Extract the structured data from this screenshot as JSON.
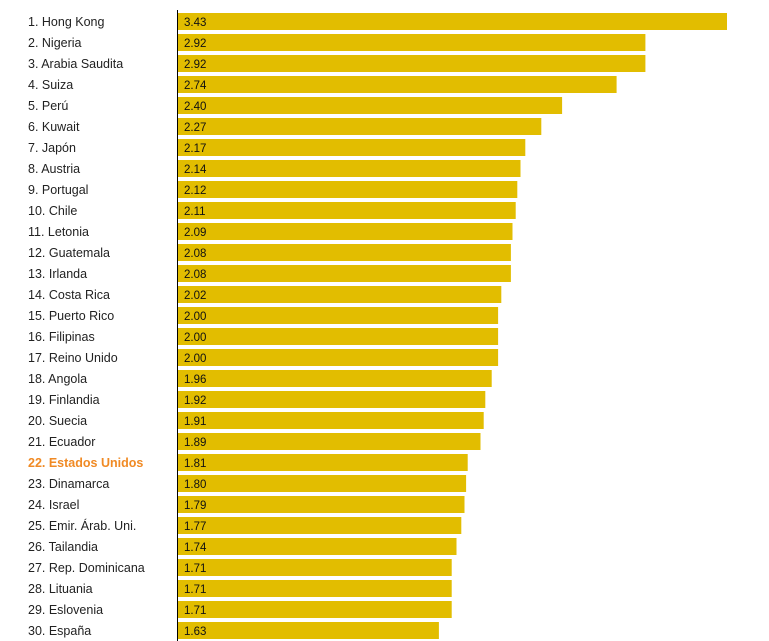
{
  "colors": {
    "bar": "#e2bd00",
    "highlight_text": "#f08a24",
    "axis": "#000000",
    "text": "#222222"
  },
  "chart_data": {
    "type": "bar",
    "orientation": "horizontal",
    "highlight_index": 21,
    "categories": [
      "1. Hong Kong",
      "2. Nigeria",
      "3. Arabia Saudita",
      "4. Suiza",
      "5. Perú",
      "6. Kuwait",
      "7. Japón",
      "8. Austria",
      "9. Portugal",
      "10. Chile",
      "11. Letonia",
      "12. Guatemala",
      "13. Irlanda",
      "14. Costa Rica",
      "15. Puerto Rico",
      "16. Filipinas",
      "17. Reino Unido",
      "18. Angola",
      "19. Finlandia",
      "20. Suecia",
      "21. Ecuador",
      "22. Estados Unidos",
      "23. Dinamarca",
      "24. Israel",
      "25. Emir. Árab. Uni.",
      "26. Tailandia",
      "27. Rep. Dominicana",
      "28. Lituania",
      "29. Eslovenia",
      "30. España"
    ],
    "values": [
      3.43,
      2.92,
      2.92,
      2.74,
      2.4,
      2.27,
      2.17,
      2.14,
      2.12,
      2.11,
      2.09,
      2.08,
      2.08,
      2.02,
      2.0,
      2.0,
      2.0,
      1.96,
      1.92,
      1.91,
      1.89,
      1.81,
      1.8,
      1.79,
      1.77,
      1.74,
      1.71,
      1.71,
      1.71,
      1.63
    ],
    "value_labels": [
      "3.43",
      "2.92",
      "2.92",
      "2.74",
      "2.40",
      "2.27",
      "2.17",
      "2.14",
      "2.12",
      "2.11",
      "2.09",
      "2.08",
      "2.08",
      "2.02",
      "2.00",
      "2.00",
      "2.00",
      "1.96",
      "1.92",
      "1.91",
      "1.89",
      "1.81",
      "1.80",
      "1.79",
      "1.77",
      "1.74",
      "1.71",
      "1.71",
      "1.71",
      "1.63"
    ],
    "xlim": [
      0,
      3.43
    ],
    "grid": false,
    "title": "",
    "xlabel": "",
    "ylabel": ""
  }
}
